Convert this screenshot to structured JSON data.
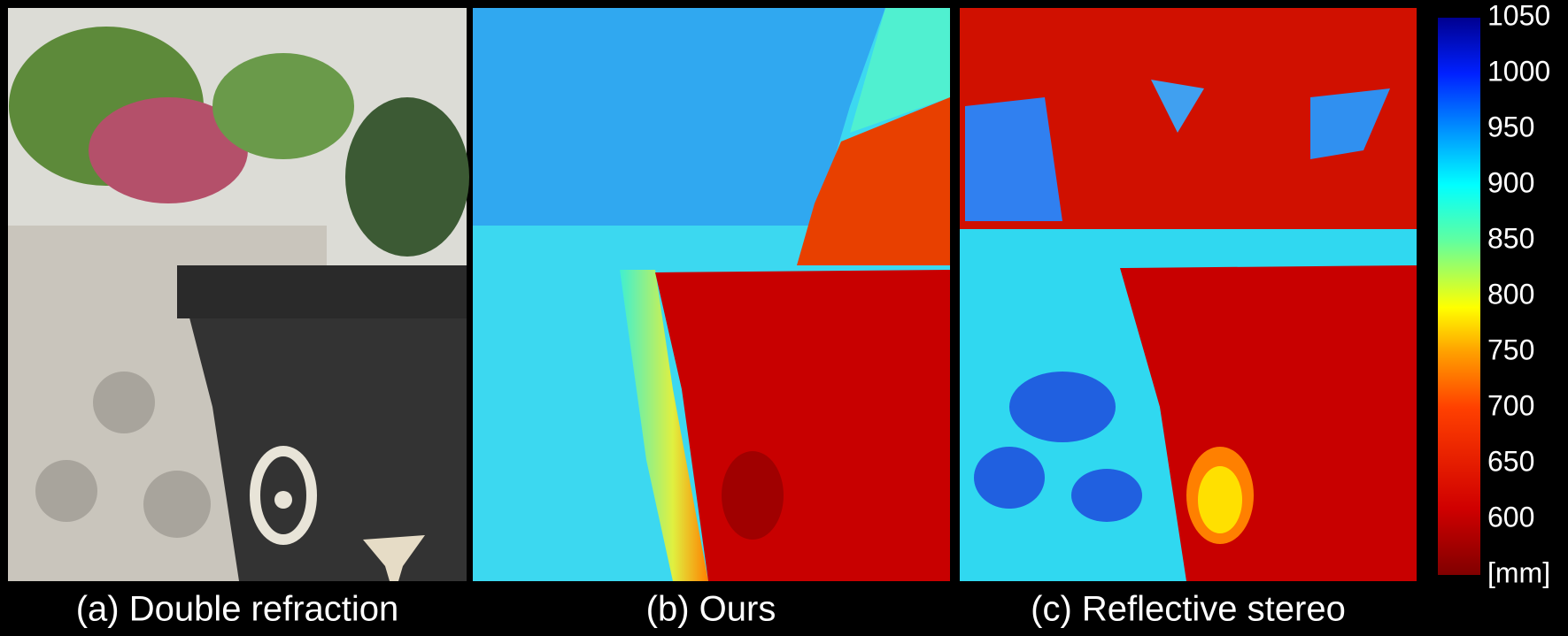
{
  "captions": [
    "(a) Double refraction",
    "(b) Ours",
    "(c) Reflective stereo"
  ],
  "colorbar": {
    "ylim": [
      550,
      1050
    ],
    "ticks": [
      1050,
      1000,
      950,
      900,
      850,
      800,
      750,
      700,
      650,
      600
    ],
    "unit": "[mm]"
  }
}
